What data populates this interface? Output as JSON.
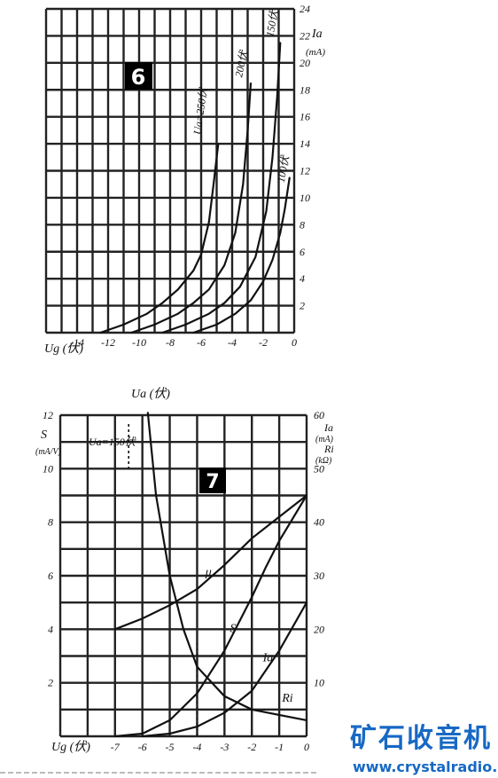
{
  "chart_data": [
    {
      "type": "line",
      "badge": "6",
      "xlabel": "Ug (伏)",
      "ylabel": "Ia",
      "yunit": "(mA)",
      "xlim": [
        -16,
        0
      ],
      "ylim": [
        0,
        24
      ],
      "x_ticks": [
        "-14",
        "-12",
        "-10",
        "-8",
        "-6",
        "-4",
        "-2",
        "0"
      ],
      "y_ticks": [
        "2",
        "4",
        "6",
        "8",
        "10",
        "12",
        "14",
        "16",
        "18",
        "20",
        "22",
        "24"
      ],
      "series": [
        {
          "name": "Ua=250伏",
          "label": "Ua=250伏",
          "x": [
            -12.5,
            -11,
            -9.5,
            -8.5,
            -7.5,
            -6.5,
            -6,
            -5.5,
            -5.2,
            -4.9
          ],
          "y": [
            0,
            0.6,
            1.4,
            2.2,
            3.2,
            4.6,
            5.8,
            8.2,
            11,
            14
          ]
        },
        {
          "name": "200伏",
          "label": "200伏",
          "x": [
            -10.5,
            -9,
            -7.5,
            -6.5,
            -5.5,
            -4.5,
            -3.8,
            -3.3,
            -3,
            -2.8
          ],
          "y": [
            0,
            0.6,
            1.4,
            2.2,
            3.2,
            5,
            7.4,
            11,
            15,
            18.5
          ]
        },
        {
          "name": "150伏",
          "label": "150伏",
          "x": [
            -8.5,
            -7,
            -5.5,
            -4.5,
            -3.5,
            -2.5,
            -1.8,
            -1.4,
            -1.1,
            -0.9
          ],
          "y": [
            0,
            0.6,
            1.4,
            2.2,
            3.4,
            5.6,
            9,
            13,
            17.5,
            21.5
          ]
        },
        {
          "name": "100伏",
          "label": "100伏",
          "x": [
            -6.5,
            -5,
            -3.8,
            -2.8,
            -2,
            -1.4,
            -0.9,
            -0.6,
            -0.3
          ],
          "y": [
            0,
            0.6,
            1.4,
            2.4,
            3.8,
            5.4,
            7.4,
            9.2,
            11.5
          ]
        }
      ]
    },
    {
      "type": "line",
      "badge": "7",
      "title": "Ua (伏)",
      "xlabel": "Ug (伏)",
      "ylabel_left": "S",
      "ylabel_left_unit": "(mA/V)",
      "ylabel_right": "Ia (mA) / Ri (kΩ)",
      "right_labels": [
        "Ia",
        "(mA)",
        "Ri",
        "(kΩ)"
      ],
      "xlim": [
        -9,
        0
      ],
      "ylim_left": [
        0,
        12
      ],
      "ylim_right": [
        0,
        60
      ],
      "x_ticks": [
        "-7",
        "-6",
        "-5",
        "-4",
        "-3",
        "-2",
        "-1",
        "0"
      ],
      "y_ticks_left": [
        "2",
        "4",
        "6",
        "8",
        "10",
        "12"
      ],
      "y_ticks_right": [
        "10",
        "20",
        "30",
        "40",
        "50",
        "60"
      ],
      "annotation": "Ua=150伏",
      "series": [
        {
          "name": "μ",
          "label": "μ",
          "axis": "left",
          "x": [
            -7,
            -6,
            -5,
            -4,
            -3,
            -2,
            -1,
            0
          ],
          "y": [
            4,
            4.4,
            4.9,
            5.5,
            6.4,
            7.4,
            8.2,
            9
          ]
        },
        {
          "name": "S",
          "label": "S",
          "axis": "left",
          "x": [
            -7,
            -6,
            -5,
            -4,
            -3,
            -2,
            -1.5,
            -1,
            0
          ],
          "y": [
            0,
            0.1,
            0.6,
            1.6,
            3.2,
            5.2,
            6.3,
            7.3,
            9
          ]
        },
        {
          "name": "Ia",
          "label": "Ia",
          "axis": "right",
          "x": [
            -6,
            -5,
            -4,
            -3,
            -2,
            -1,
            0
          ],
          "y": [
            0,
            0.5,
            1.8,
            4.4,
            8.5,
            16,
            25
          ]
        },
        {
          "name": "Ri",
          "label": "Ri",
          "axis": "right",
          "x": [
            -5.8,
            -5.5,
            -5,
            -4.5,
            -4,
            -3,
            -2,
            -1,
            0
          ],
          "y": [
            63,
            45,
            30,
            20,
            13,
            7.5,
            5,
            4,
            3
          ]
        }
      ]
    }
  ],
  "watermark": {
    "title": "矿石收音机",
    "url": "www.crystalradio.cn"
  }
}
